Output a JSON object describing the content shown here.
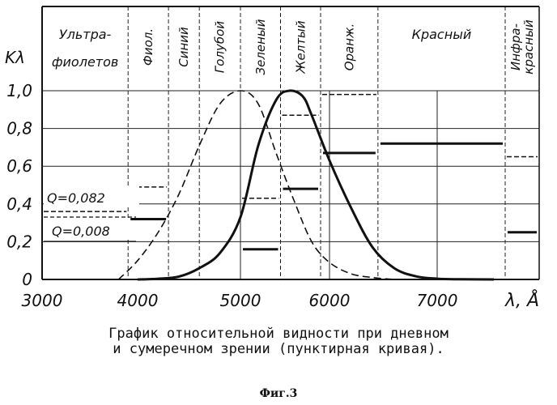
{
  "chart_data": {
    "type": "line",
    "ylabel": "Kλ",
    "xlabel": "λ, Å",
    "xlim": [
      3000,
      7600
    ],
    "ylim": [
      0,
      1.0
    ],
    "x_ticks": [
      {
        "value": 3000,
        "label": "3000"
      },
      {
        "value": 4000,
        "label": "4000"
      },
      {
        "value": 5000,
        "label": "5000"
      },
      {
        "value": 6000,
        "label": "6000"
      },
      {
        "value": 7000,
        "label": "7000"
      }
    ],
    "y_ticks": [
      {
        "value": 0,
        "label": "0"
      },
      {
        "value": 0.2,
        "label": "0,2"
      },
      {
        "value": 0.4,
        "label": "0,4"
      },
      {
        "value": 0.6,
        "label": "0,6"
      },
      {
        "value": 0.8,
        "label": "0,8"
      },
      {
        "value": 1.0,
        "label": "1,0"
      }
    ],
    "bands": [
      {
        "name": "Ультрафиолетов",
        "from": 3000,
        "to": 3900,
        "label_lines": [
          "Ультра-",
          "фиолетов"
        ],
        "vertical": false
      },
      {
        "name": "Фиол.",
        "from": 3900,
        "to": 4300,
        "label_lines": [
          "Фиол."
        ],
        "vertical": true
      },
      {
        "name": "Синий",
        "from": 4300,
        "to": 4600,
        "label_lines": [
          "Синий"
        ],
        "vertical": true
      },
      {
        "name": "Голубой",
        "from": 4600,
        "to": 5000,
        "label_lines": [
          "Голубой"
        ],
        "vertical": true
      },
      {
        "name": "Зеленый",
        "from": 5000,
        "to": 5450,
        "label_lines": [
          "Зеленый"
        ],
        "vertical": true
      },
      {
        "name": "Желтый",
        "from": 5450,
        "to": 5900,
        "label_lines": [
          "Желтый"
        ],
        "vertical": true
      },
      {
        "name": "Оранж.",
        "from": 5900,
        "to": 6450,
        "label_lines": [
          "Оранж."
        ],
        "vertical": true
      },
      {
        "name": "Красный",
        "from": 6450,
        "to": 7600,
        "label_lines": [
          "Красный"
        ],
        "vertical": false
      },
      {
        "name": "Инфракрасный",
        "from": 7600,
        "to": 7900,
        "label_lines": [
          "Инфра-",
          "красный"
        ],
        "vertical": true
      }
    ],
    "series": [
      {
        "style": "solid",
        "x": [
          4000,
          4200,
          4400,
          4600,
          4800,
          5000,
          5200,
          5400,
          5550,
          5700,
          5800,
          6000,
          6200,
          6400,
          6600,
          6800,
          7000,
          7200,
          7500
        ],
        "y": [
          0.0,
          0.004,
          0.015,
          0.06,
          0.14,
          0.33,
          0.71,
          0.95,
          1.0,
          0.97,
          0.87,
          0.63,
          0.38,
          0.17,
          0.06,
          0.017,
          0.004,
          0.001,
          0.0
        ]
      },
      {
        "style": "dashed",
        "x": [
          3800,
          4000,
          4200,
          4400,
          4600,
          4800,
          5000,
          5200,
          5400,
          5600,
          5800,
          6000,
          6200,
          6400,
          6600
        ],
        "y": [
          0.0,
          0.1,
          0.25,
          0.45,
          0.71,
          0.93,
          1.0,
          0.93,
          0.67,
          0.42,
          0.2,
          0.09,
          0.03,
          0.01,
          0.0
        ]
      }
    ],
    "solid_band_means": [
      {
        "band": "Фиол.",
        "value": 0.32
      },
      {
        "band": "Зеленый",
        "value": 0.16
      },
      {
        "band": "Желтый",
        "value": 0.48
      },
      {
        "band": "Оранж.",
        "value": 0.67
      },
      {
        "band": "Красный",
        "value": 0.72
      },
      {
        "band": "Инфракрасный",
        "value": 0.25
      }
    ],
    "dashed_band_means": [
      {
        "band": "Ультрафиолетов",
        "value": 0.36
      },
      {
        "band": "Фиол.",
        "value": 0.49
      },
      {
        "band": "Зеленый",
        "value": 0.43
      },
      {
        "band": "Желтый",
        "value": 0.87
      },
      {
        "band": "Оранж.",
        "value": 0.98
      },
      {
        "band": "Инфракрасный",
        "value": 0.65
      }
    ],
    "annotations": [
      "Q=0,082",
      "Q=0,008"
    ],
    "grid": true
  },
  "caption_lines": [
    "График относительной видности при дневном",
    "и сумеречном зрении (пунктирная кривая)."
  ],
  "figure_label": "Фиг.3"
}
